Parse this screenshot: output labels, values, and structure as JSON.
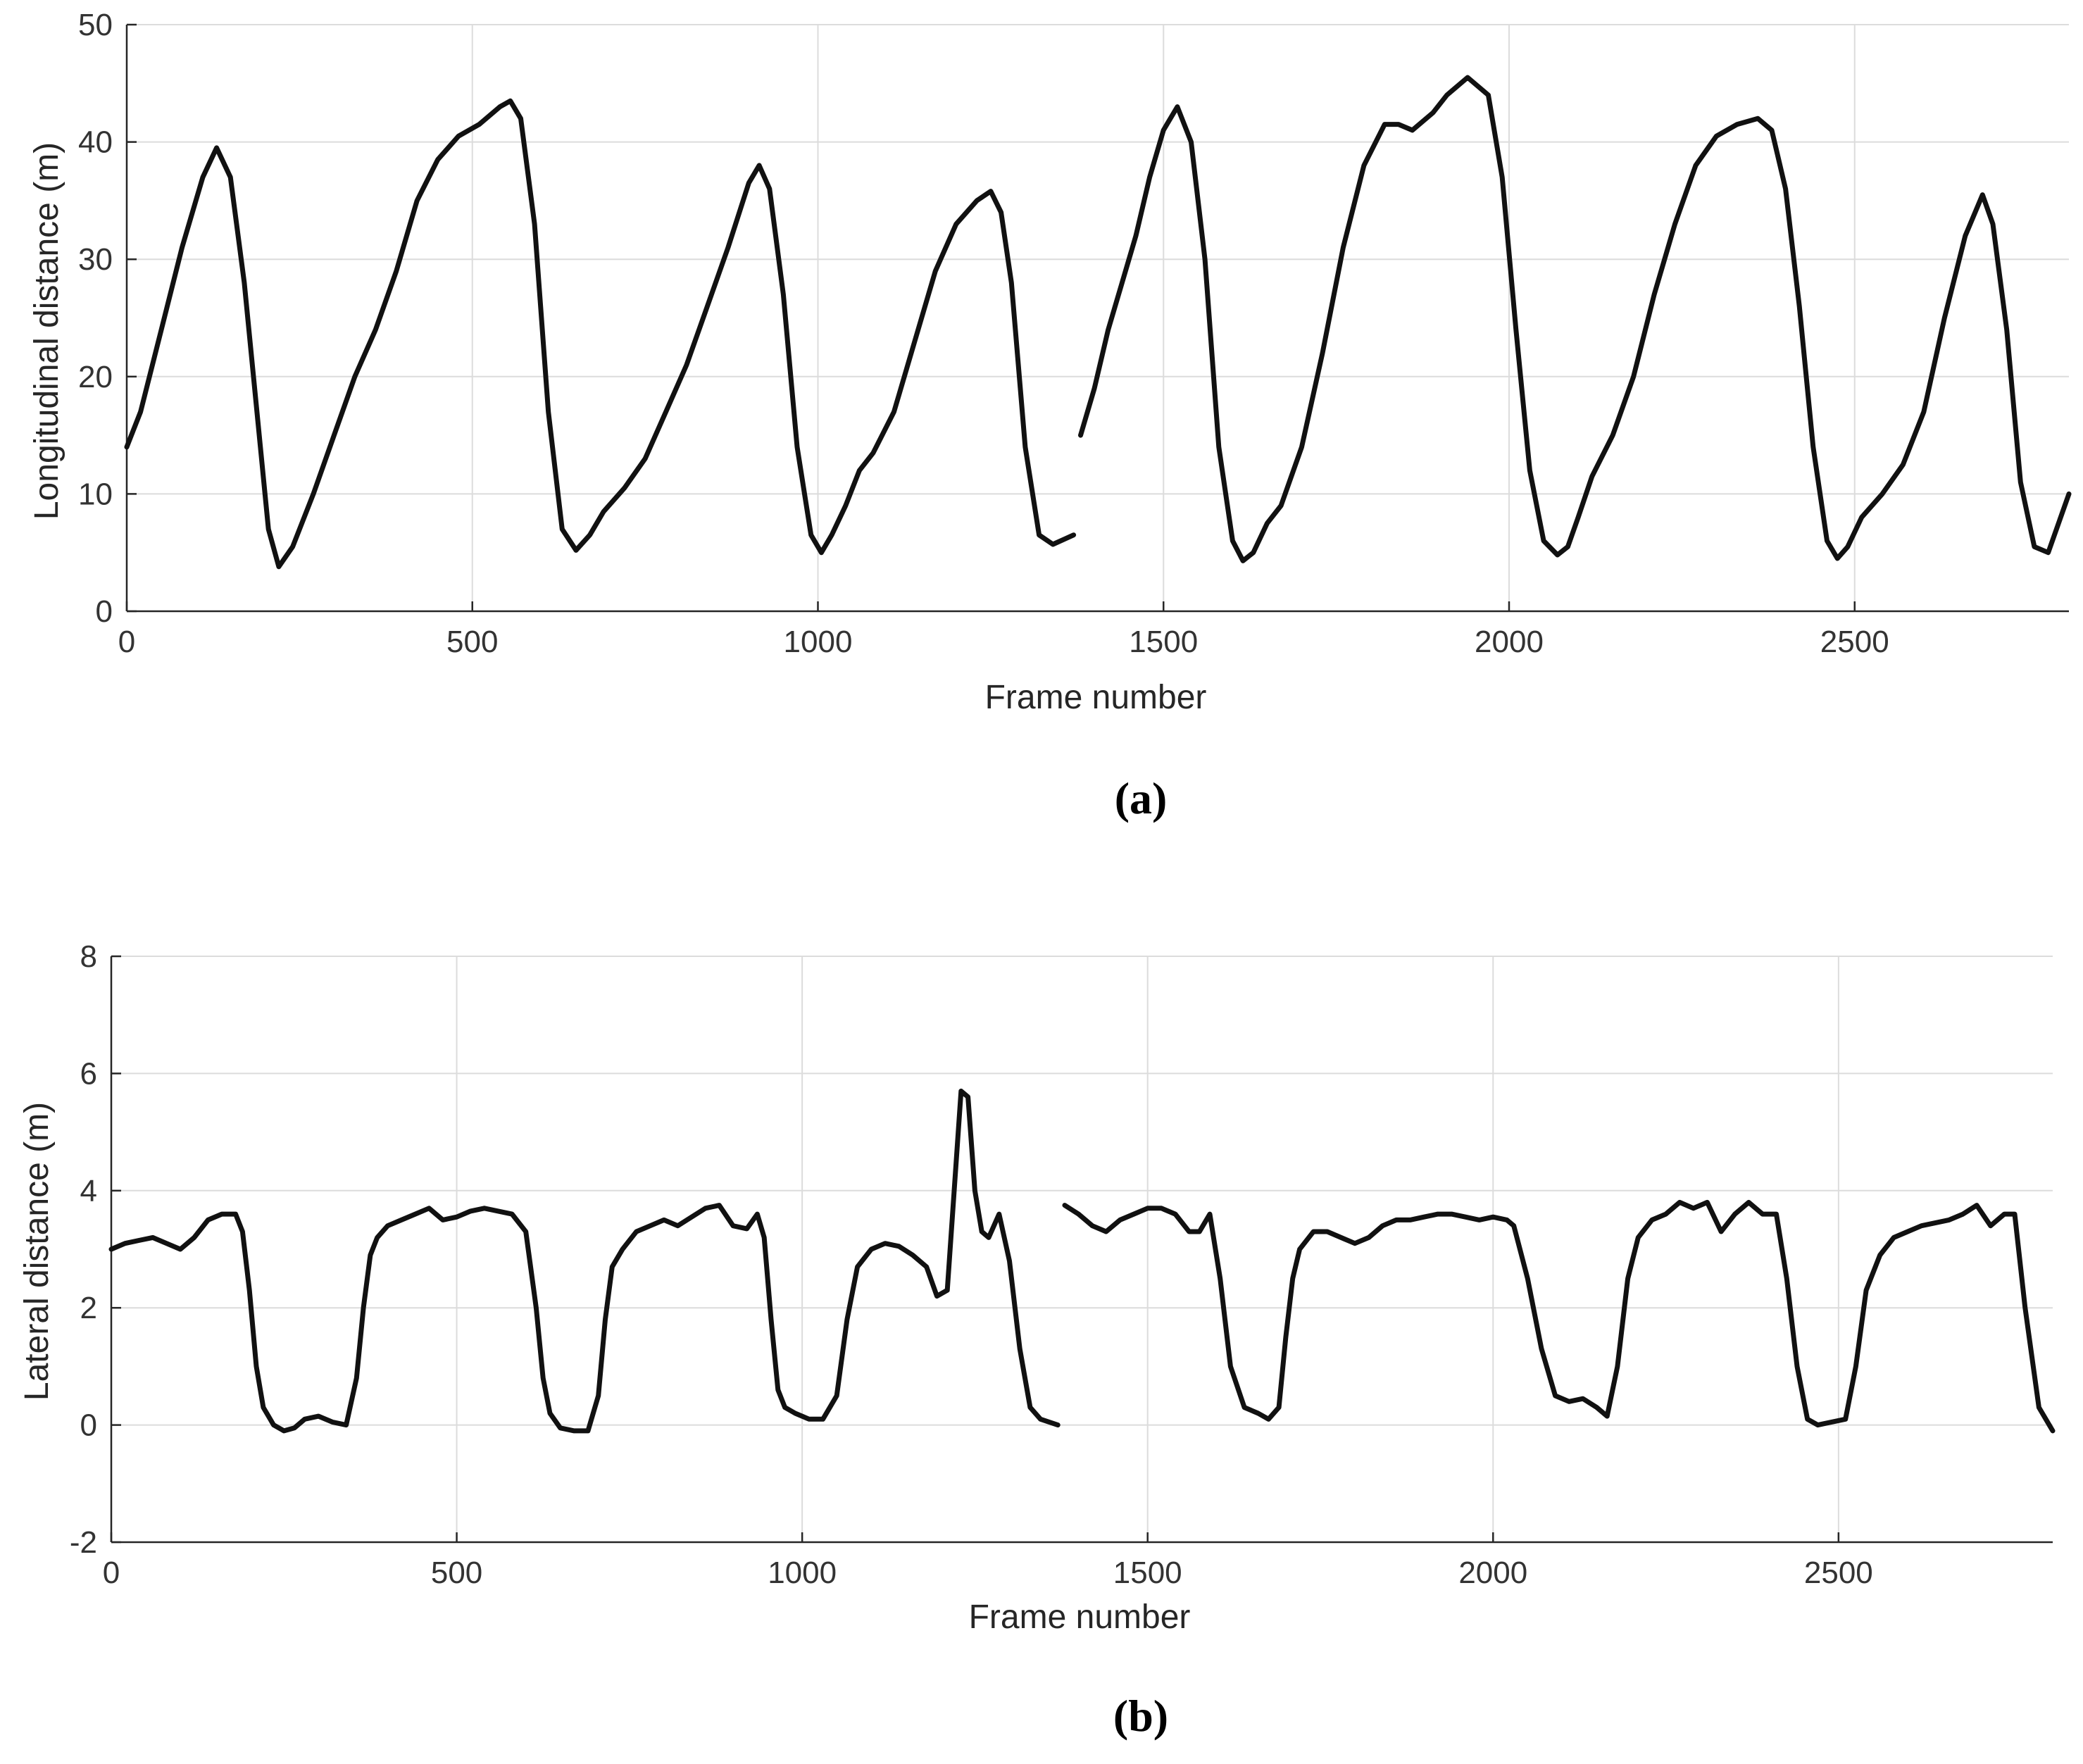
{
  "chart_data": [
    {
      "type": "line",
      "panel_label": "(a)",
      "xlabel": "Frame number",
      "ylabel": "Longitudinal distance (m)",
      "xlim": [
        0,
        2810
      ],
      "ylim": [
        0,
        50
      ],
      "xticks": [
        "0",
        "500",
        "1000",
        "1500",
        "2000",
        "2500"
      ],
      "yticks": [
        "0",
        "10",
        "20",
        "30",
        "40",
        "50"
      ],
      "grid": true,
      "series": [
        {
          "color": "#111111",
          "segments": [
            {
              "x": [
                0,
                20,
                50,
                80,
                110,
                130,
                150,
                170,
                190,
                205,
                220,
                240,
                270,
                300,
                330,
                360,
                390,
                420,
                450,
                480,
                510,
                540,
                555,
                570,
                590,
                610,
                630,
                650,
                670,
                690,
                720,
                750,
                780,
                810,
                840,
                870,
                900,
                915,
                930,
                950,
                970,
                990,
                1005,
                1020,
                1040,
                1060,
                1080,
                1110,
                1140,
                1170,
                1200,
                1230,
                1250,
                1265,
                1280,
                1300,
                1320,
                1340,
                1370
              ],
              "y": [
                14,
                17,
                24,
                31,
                37,
                39.5,
                37,
                28,
                16,
                7,
                3.8,
                5.5,
                10,
                15,
                20,
                24,
                29,
                35,
                38.5,
                40.5,
                41.5,
                43,
                43.5,
                42,
                33,
                17,
                7,
                5.2,
                6.5,
                8.5,
                10.5,
                13,
                17,
                21,
                26,
                31,
                36.5,
                38,
                36,
                27,
                14,
                6.5,
                5,
                6.5,
                9,
                12,
                13.5,
                17,
                23,
                29,
                33,
                35,
                35.8,
                34,
                28,
                14,
                6.5,
                5.7,
                6.5
              ]
            },
            {
              "x": [
                1380,
                1400,
                1420,
                1440,
                1460,
                1480,
                1500,
                1520,
                1540,
                1560,
                1580,
                1600,
                1615,
                1630,
                1650,
                1670,
                1700,
                1730,
                1760,
                1790,
                1820,
                1840,
                1860,
                1890,
                1910,
                1940,
                1970,
                1990,
                2010,
                2030,
                2050,
                2070,
                2085,
                2100,
                2120,
                2150,
                2180,
                2210,
                2240,
                2270,
                2300,
                2330,
                2360,
                2380,
                2400,
                2420,
                2440,
                2460,
                2475,
                2490,
                2510,
                2540,
                2570,
                2600,
                2630,
                2660,
                2685,
                2700,
                2720,
                2740,
                2760,
                2780,
                2810
              ],
              "y": [
                15,
                19,
                24,
                28,
                32,
                37,
                41,
                43,
                40,
                30,
                14,
                6,
                4.3,
                5,
                7.5,
                9,
                14,
                22,
                31,
                38,
                41.5,
                41.5,
                41,
                42.5,
                44,
                45.5,
                44,
                37,
                24,
                12,
                6,
                4.8,
                5.5,
                8,
                11.5,
                15,
                20,
                27,
                33,
                38,
                40.5,
                41.5,
                42,
                41,
                36,
                26,
                14,
                6,
                4.5,
                5.5,
                8,
                10,
                12.5,
                17,
                25,
                32,
                35.5,
                33,
                24,
                11,
                5.5,
                5,
                10
              ]
            }
          ]
        }
      ]
    },
    {
      "type": "line",
      "panel_label": "(b)",
      "xlabel": "Frame number",
      "ylabel": "Lateral distance (m)",
      "xlim": [
        0,
        2810
      ],
      "ylim": [
        -2,
        8
      ],
      "xticks": [
        "0",
        "500",
        "1000",
        "1500",
        "2000",
        "2500"
      ],
      "yticks": [
        "-2",
        "0",
        "2",
        "4",
        "6",
        "8"
      ],
      "grid": true,
      "series": [
        {
          "color": "#111111",
          "segments": [
            {
              "x": [
                0,
                20,
                40,
                60,
                80,
                100,
                120,
                140,
                160,
                180,
                190,
                200,
                210,
                220,
                235,
                250,
                265,
                280,
                300,
                320,
                340,
                355,
                365,
                375,
                385,
                400,
                420,
                440,
                460,
                480,
                500,
                520,
                540,
                560,
                580,
                600,
                615,
                625,
                635,
                650,
                670,
                690,
                705,
                715,
                725,
                740,
                760,
                780,
                800,
                820,
                840,
                860,
                880,
                900,
                920,
                935,
                945,
                955,
                965,
                975,
                990,
                1010,
                1030,
                1050,
                1065,
                1080,
                1100,
                1120,
                1140,
                1160,
                1180,
                1195,
                1210,
                1220,
                1230,
                1240,
                1250,
                1260,
                1270,
                1285,
                1300,
                1315,
                1330,
                1345,
                1370
              ],
              "y": [
                3.0,
                3.1,
                3.15,
                3.2,
                3.1,
                3.0,
                3.2,
                3.5,
                3.6,
                3.6,
                3.3,
                2.3,
                1.0,
                0.3,
                0.0,
                -0.1,
                -0.05,
                0.1,
                0.15,
                0.05,
                0.0,
                0.8,
                2.0,
                2.9,
                3.2,
                3.4,
                3.5,
                3.6,
                3.7,
                3.5,
                3.55,
                3.65,
                3.7,
                3.65,
                3.6,
                3.3,
                2.0,
                0.8,
                0.2,
                -0.05,
                -0.1,
                -0.1,
                0.5,
                1.8,
                2.7,
                3.0,
                3.3,
                3.4,
                3.5,
                3.4,
                3.55,
                3.7,
                3.75,
                3.4,
                3.35,
                3.6,
                3.2,
                1.8,
                0.6,
                0.3,
                0.2,
                0.1,
                0.1,
                0.5,
                1.8,
                2.7,
                3.0,
                3.1,
                3.05,
                2.9,
                2.7,
                2.2,
                2.3,
                4.0,
                5.7,
                5.6,
                4.0,
                3.3,
                3.2,
                3.6,
                2.8,
                1.3,
                0.3,
                0.1,
                0.0
              ]
            },
            {
              "x": [
                1380,
                1400,
                1420,
                1440,
                1460,
                1480,
                1500,
                1520,
                1540,
                1560,
                1575,
                1590,
                1605,
                1620,
                1640,
                1660,
                1675,
                1690,
                1700,
                1710,
                1720,
                1740,
                1760,
                1780,
                1800,
                1820,
                1840,
                1860,
                1880,
                1900,
                1920,
                1940,
                1960,
                1980,
                2000,
                2020,
                2030,
                2050,
                2070,
                2090,
                2110,
                2130,
                2150,
                2165,
                2180,
                2195,
                2210,
                2230,
                2250,
                2270,
                2290,
                2310,
                2330,
                2350,
                2370,
                2390,
                2410,
                2425,
                2440,
                2455,
                2470,
                2490,
                2510,
                2525,
                2540,
                2560,
                2580,
                2600,
                2620,
                2640,
                2660,
                2680,
                2700,
                2720,
                2740,
                2755,
                2770,
                2790,
                2810
              ],
              "y": [
                3.75,
                3.6,
                3.4,
                3.3,
                3.5,
                3.6,
                3.7,
                3.7,
                3.6,
                3.3,
                3.3,
                3.6,
                2.5,
                1.0,
                0.3,
                0.2,
                0.1,
                0.3,
                1.5,
                2.5,
                3.0,
                3.3,
                3.3,
                3.2,
                3.1,
                3.2,
                3.4,
                3.5,
                3.5,
                3.55,
                3.6,
                3.6,
                3.55,
                3.5,
                3.55,
                3.5,
                3.4,
                2.5,
                1.3,
                0.5,
                0.4,
                0.45,
                0.3,
                0.15,
                1.0,
                2.5,
                3.2,
                3.5,
                3.6,
                3.8,
                3.7,
                3.8,
                3.3,
                3.6,
                3.8,
                3.6,
                3.6,
                2.5,
                1.0,
                0.1,
                0.0,
                0.05,
                0.1,
                1.0,
                2.3,
                2.9,
                3.2,
                3.3,
                3.4,
                3.45,
                3.5,
                3.6,
                3.75,
                3.4,
                3.6,
                3.6,
                2.0,
                0.3,
                -0.1
              ]
            }
          ]
        }
      ]
    }
  ]
}
